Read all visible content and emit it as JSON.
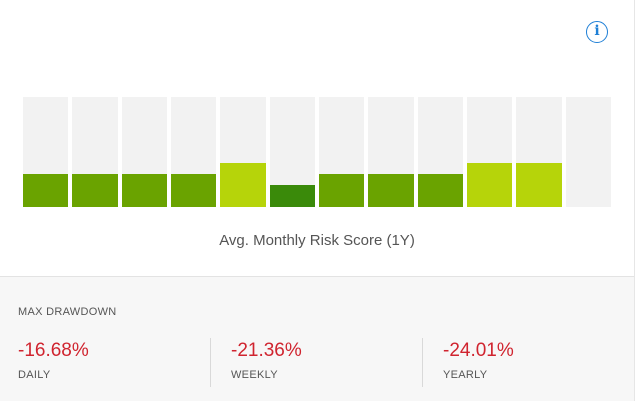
{
  "info_icon": {
    "glyph": "i",
    "icon": "info-icon",
    "color": "#1e7fd6"
  },
  "chart_data": {
    "type": "bar",
    "title": "Avg. Monthly Risk Score (1Y)",
    "months": 12,
    "values": [
      0.3,
      0.3,
      0.3,
      0.3,
      0.4,
      0.2,
      0.3,
      0.3,
      0.3,
      0.4,
      0.4,
      0.0
    ],
    "colors": [
      "#6aa300",
      "#6aa300",
      "#6aa300",
      "#6aa300",
      "#b6d40a",
      "#3a8a0a",
      "#6aa300",
      "#6aa300",
      "#6aa300",
      "#b6d40a",
      "#b6d40a",
      "#6aa300"
    ],
    "ylim": [
      0,
      1
    ],
    "track_color": "#f2f2f2"
  },
  "drawdown": {
    "title": "MAX DRAWDOWN",
    "stats": [
      {
        "value": "-16.68%",
        "label": "DAILY"
      },
      {
        "value": "-21.36%",
        "label": "WEEKLY"
      },
      {
        "value": "-24.01%",
        "label": "YEARLY"
      }
    ],
    "value_color": "#d0242f"
  }
}
